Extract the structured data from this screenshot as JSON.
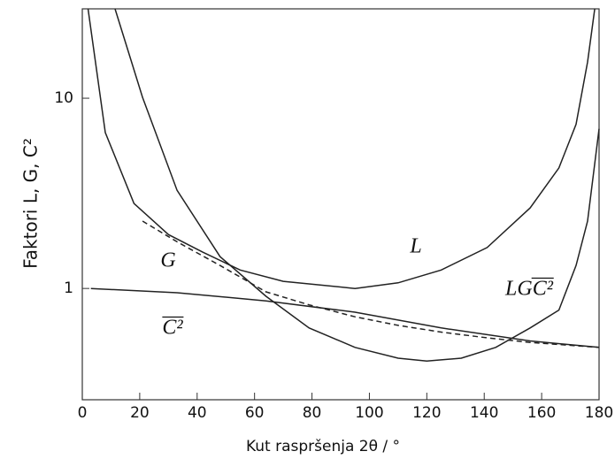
{
  "chart_data": {
    "type": "line",
    "x_label": "Kut raspršenja 2θ / °",
    "y_label": "Faktori L, G, C²",
    "xlim": [
      0,
      180
    ],
    "xticks": [
      0,
      20,
      40,
      60,
      80,
      100,
      120,
      140,
      160,
      180
    ],
    "ylim": [
      0.26,
      29.5
    ],
    "yticks": [
      1,
      10
    ],
    "y_scale": "log",
    "series": [
      {
        "name": "L",
        "color": "#222222",
        "line_style": "solid",
        "x": [
          2,
          8,
          18,
          30,
          42,
          55,
          70,
          95,
          110,
          125,
          141,
          156,
          166,
          172,
          176,
          178.5
        ],
        "values": [
          29.5,
          6.6,
          2.8,
          1.92,
          1.55,
          1.25,
          1.09,
          1.0,
          1.07,
          1.25,
          1.64,
          2.65,
          4.3,
          7.3,
          15.5,
          29.5
        ]
      },
      {
        "name": "G",
        "color": "#222222",
        "line_style": "dashed",
        "x": [
          21,
          33,
          48,
          64,
          79,
          95,
          110,
          125,
          141,
          156,
          180
        ],
        "values": [
          2.26,
          1.76,
          1.32,
          0.96,
          0.82,
          0.71,
          0.64,
          0.59,
          0.55,
          0.52,
          0.49
        ]
      },
      {
        "name": "C²",
        "color": "#222222",
        "line_style": "solid",
        "x": [
          3,
          33,
          64,
          95,
          125,
          156,
          180
        ],
        "values": [
          1.0,
          0.95,
          0.86,
          0.75,
          0.62,
          0.53,
          0.49
        ]
      },
      {
        "name": "LGC²",
        "color": "#222222",
        "line_style": "solid",
        "x": [
          11.4,
          21,
          33,
          48,
          64,
          79,
          95,
          110,
          120,
          132,
          144,
          156,
          166,
          172,
          176,
          180
        ],
        "values": [
          29.5,
          10.1,
          3.28,
          1.47,
          0.91,
          0.62,
          0.49,
          0.43,
          0.415,
          0.43,
          0.49,
          0.62,
          0.77,
          1.32,
          2.26,
          6.9
        ]
      }
    ]
  }
}
